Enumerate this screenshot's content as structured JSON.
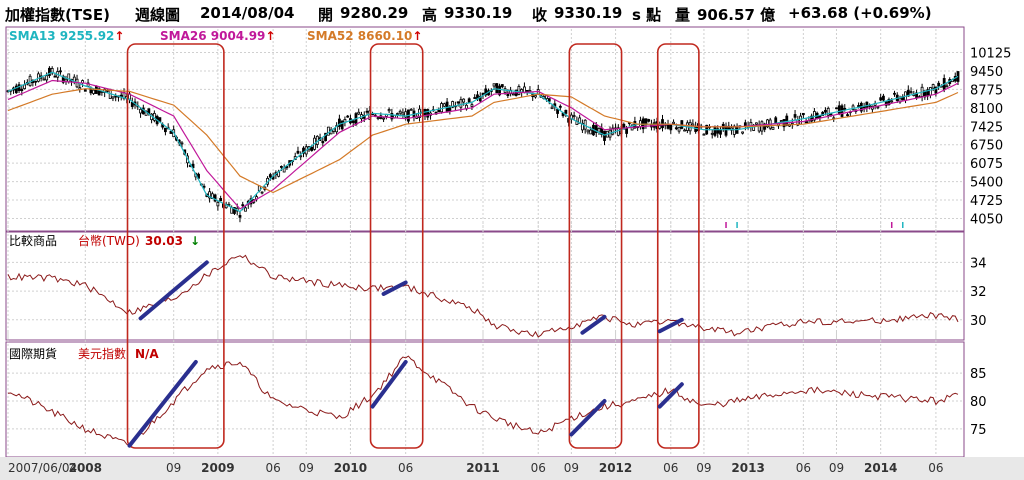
{
  "header": {
    "index_name": "加權指數(TSE)",
    "period": "週線圖",
    "date": "2014/08/04",
    "open_label": "開",
    "open": "9280.29",
    "high_label": "高",
    "high": "9330.19",
    "close_label": "收",
    "close": "9330.19",
    "unit": "s 點",
    "volume_label": "量",
    "volume": "906.57 億",
    "change": "+63.68 (+0.69%)"
  },
  "legend": {
    "sma13": "SMA13 9255.92",
    "sma13_color": "#1fb5c0",
    "sma26": "SMA26 9004.99",
    "sma26_color": "#c0189a",
    "sma52": "SMA52 8660.10",
    "sma52_color": "#d47a28",
    "arrow_up": "↑",
    "arrow_down": "↓"
  },
  "panel2": {
    "title": "比較商品",
    "series_name": "台幣(TWD)",
    "value": "30.03",
    "color": "#8b1a1a"
  },
  "panel3": {
    "title": "國際期貨",
    "series_name": "美元指數",
    "value": "N/A",
    "color": "#8b1a1a"
  },
  "x_labels": [
    "2007/06/04",
    "2008",
    "09",
    "2009",
    "06",
    "09",
    "2010",
    "06",
    "2011",
    "06",
    "09",
    "2012",
    "06",
    "09",
    "2013",
    "06",
    "09",
    "2014",
    "06"
  ],
  "chart_data": [
    {
      "type": "line",
      "title": "加權指數(TSE) 週線圖",
      "ylim": [
        3700,
        10400
      ],
      "yticks": [
        10125,
        9450,
        8775,
        8100,
        7425,
        6750,
        6075,
        5400,
        4725,
        4050
      ],
      "x": [
        "2007-06",
        "2007-10",
        "2008-01",
        "2008-05",
        "2008-09",
        "2008-12",
        "2009-03",
        "2009-06",
        "2009-12",
        "2010-03",
        "2010-06",
        "2010-12",
        "2011-02",
        "2011-06",
        "2011-09",
        "2011-12",
        "2012-03",
        "2012-06",
        "2012-09",
        "2012-12",
        "2013-06",
        "2013-12",
        "2014-06",
        "2014-08"
      ],
      "series": [
        {
          "name": "SMA13",
          "values": [
            8700,
            9400,
            8900,
            8400,
            7200,
            4900,
            4300,
            5600,
            7500,
            7900,
            7800,
            8300,
            8800,
            8600,
            7700,
            7100,
            7500,
            7500,
            7300,
            7300,
            7700,
            8200,
            8800,
            9250
          ]
        },
        {
          "name": "SMA26",
          "values": [
            8400,
            9100,
            9000,
            8600,
            7800,
            5800,
            4400,
            5100,
            7200,
            7800,
            7700,
            8100,
            8600,
            8700,
            8100,
            7300,
            7400,
            7500,
            7400,
            7400,
            7600,
            8100,
            8600,
            9000
          ]
        },
        {
          "name": "SMA52",
          "values": [
            8000,
            8600,
            8800,
            8700,
            8200,
            7100,
            5600,
            5000,
            6200,
            7100,
            7500,
            7800,
            8300,
            8600,
            8500,
            7800,
            7500,
            7500,
            7400,
            7400,
            7500,
            7900,
            8300,
            8660
          ]
        }
      ]
    },
    {
      "type": "line",
      "title": "比較商品 台幣(TWD)",
      "ylim": [
        28.8,
        35.7
      ],
      "yticks": [
        34,
        32,
        30
      ],
      "x": [
        "2007-06",
        "2007-10",
        "2008-01",
        "2008-05",
        "2008-09",
        "2008-12",
        "2009-03",
        "2009-06",
        "2009-12",
        "2010-03",
        "2010-06",
        "2010-12",
        "2011-02",
        "2011-06",
        "2011-09",
        "2011-12",
        "2012-03",
        "2012-06",
        "2012-09",
        "2012-12",
        "2013-06",
        "2013-12",
        "2014-06",
        "2014-08"
      ],
      "series": [
        {
          "name": "台幣(TWD)",
          "values": [
            33.0,
            32.9,
            32.4,
            30.5,
            31.5,
            33.1,
            34.6,
            33.0,
            32.4,
            32.2,
            32.3,
            30.8,
            29.6,
            28.9,
            29.6,
            30.2,
            29.6,
            29.9,
            29.4,
            29.1,
            29.9,
            29.9,
            30.3,
            30.03
          ]
        }
      ]
    },
    {
      "type": "line",
      "title": "國際期貨 美元指數",
      "ylim": [
        70.5,
        89.5
      ],
      "yticks": [
        85,
        80,
        75
      ],
      "x": [
        "2007-06",
        "2007-10",
        "2008-01",
        "2008-05",
        "2008-09",
        "2008-12",
        "2009-03",
        "2009-06",
        "2009-12",
        "2010-03",
        "2010-06",
        "2010-12",
        "2011-02",
        "2011-06",
        "2011-09",
        "2011-12",
        "2012-03",
        "2012-06",
        "2012-09",
        "2012-12",
        "2013-06",
        "2013-12",
        "2014-06",
        "2014-08"
      ],
      "series": [
        {
          "name": "美元指數",
          "values": [
            82,
            78,
            75,
            72,
            80,
            86,
            87,
            80,
            77,
            81,
            88,
            79,
            77,
            74,
            77,
            79,
            80,
            82,
            79,
            80,
            82,
            81,
            80,
            81
          ]
        }
      ]
    }
  ]
}
